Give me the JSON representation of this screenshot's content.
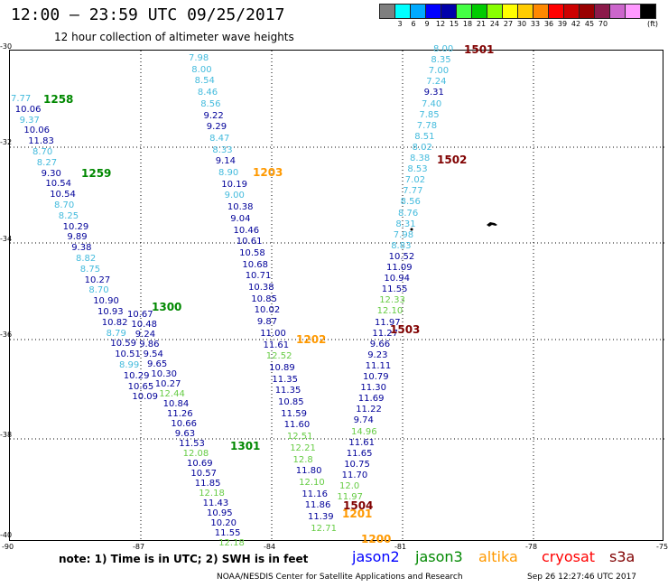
{
  "header": {
    "title": "12:00 – 23:59 UTC 09/25/2017",
    "subtitle": "12 hour collection of altimeter wave heights"
  },
  "scale": {
    "unit": "(ft)",
    "colors": [
      "#7f7f7f",
      "#00ffff",
      "#00aaff",
      "#0000ff",
      "#0000aa",
      "#44ff44",
      "#00cc00",
      "#88ff00",
      "#ffff00",
      "#ffcc00",
      "#ff8800",
      "#ff0000",
      "#cc0000",
      "#990000",
      "#8b1a4a",
      "#cc66cc",
      "#ff99ff",
      "#000000"
    ],
    "labels": [
      "3",
      "6",
      "9",
      "12",
      "15",
      "18",
      "21",
      "24",
      "27",
      "30",
      "33",
      "36",
      "39",
      "42",
      "45",
      "70"
    ]
  },
  "axes": {
    "lat": [
      "-30",
      "-32",
      "-34",
      "-36",
      "-38",
      "-40"
    ],
    "lon": [
      "-90",
      "-87",
      "-84",
      "-81",
      "-78",
      "-75"
    ]
  },
  "colors": {
    "jason2": "#0000ff",
    "jason3": "#008800",
    "altika": "#ff9900",
    "cryosat": "#ff0000",
    "s3a": "#800000"
  },
  "tracks": [
    {
      "id": "track-1258",
      "start": [
        12,
        105
      ],
      "step": [
        4.8,
        11.8
      ],
      "values": [
        {
          "v": "7.77",
          "c": "#44bbdd"
        },
        {
          "v": "10.06",
          "c": "#000099"
        },
        {
          "v": "9.37",
          "c": "#44bbdd"
        },
        {
          "v": "10.06",
          "c": "#000099"
        },
        {
          "v": "11.83",
          "c": "#000099"
        },
        {
          "v": "8.70",
          "c": "#44bbdd"
        },
        {
          "v": "8.27",
          "c": "#44bbdd"
        },
        {
          "v": "9.30",
          "c": "#000099"
        },
        {
          "v": "10.54",
          "c": "#000099"
        },
        {
          "v": "10.54",
          "c": "#000099"
        },
        {
          "v": "8.70",
          "c": "#44bbdd"
        },
        {
          "v": "8.25",
          "c": "#44bbdd"
        },
        {
          "v": "10.29",
          "c": "#000099"
        },
        {
          "v": "9.89",
          "c": "#000099"
        },
        {
          "v": "9.38",
          "c": "#000099"
        },
        {
          "v": "8.82",
          "c": "#44bbdd"
        },
        {
          "v": "8.75",
          "c": "#44bbdd"
        },
        {
          "v": "10.27",
          "c": "#000099"
        },
        {
          "v": "8.70",
          "c": "#44bbdd"
        },
        {
          "v": "10.90",
          "c": "#000099"
        },
        {
          "v": "10.93",
          "c": "#000099"
        },
        {
          "v": "10.82",
          "c": "#000099"
        },
        {
          "v": "8.79",
          "c": "#44bbdd"
        },
        {
          "v": "10.59",
          "c": "#000099"
        },
        {
          "v": "10.51",
          "c": "#000099"
        },
        {
          "v": "8.99",
          "c": "#44bbdd"
        },
        {
          "v": "10.29",
          "c": "#000099"
        },
        {
          "v": "10.65",
          "c": "#000099"
        },
        {
          "v": "10.09",
          "c": "#000099"
        }
      ]
    },
    {
      "id": "track-1300",
      "start": [
        141,
        344
      ],
      "step": [
        4.4,
        11.0
      ],
      "values": [
        {
          "v": "10.67",
          "c": "#000099"
        },
        {
          "v": "10.48",
          "c": "#000099"
        },
        {
          "v": "9.24",
          "c": "#000099"
        },
        {
          "v": "9.86",
          "c": "#000099"
        },
        {
          "v": "9.54",
          "c": "#000099"
        },
        {
          "v": "9.65",
          "c": "#000099"
        },
        {
          "v": "10.30",
          "c": "#000099"
        },
        {
          "v": "10.27",
          "c": "#000099"
        },
        {
          "v": "12.44",
          "c": "#66cc44"
        },
        {
          "v": "10.84",
          "c": "#000099"
        },
        {
          "v": "11.26",
          "c": "#000099"
        },
        {
          "v": "10.66",
          "c": "#000099"
        },
        {
          "v": "9.63",
          "c": "#000099"
        },
        {
          "v": "11.53",
          "c": "#000099"
        },
        {
          "v": "12.08",
          "c": "#66cc44"
        },
        {
          "v": "10.69",
          "c": "#000099"
        },
        {
          "v": "10.57",
          "c": "#000099"
        },
        {
          "v": "11.85",
          "c": "#000099"
        },
        {
          "v": "12.18",
          "c": "#66cc44"
        },
        {
          "v": "11.43",
          "c": "#000099"
        },
        {
          "v": "10.95",
          "c": "#000099"
        },
        {
          "v": "10.20",
          "c": "#000099"
        },
        {
          "v": "11.55",
          "c": "#000099"
        },
        {
          "v": "12.18",
          "c": "#66cc44"
        }
      ]
    },
    {
      "id": "track-1203",
      "start": [
        209,
        60
      ],
      "step": [
        3.3,
        12.7
      ],
      "values": [
        {
          "v": "7.98",
          "c": "#44bbdd"
        },
        {
          "v": "8.00",
          "c": "#44bbdd"
        },
        {
          "v": "8.54",
          "c": "#44bbdd"
        },
        {
          "v": "8.46",
          "c": "#44bbdd"
        },
        {
          "v": "8.56",
          "c": "#44bbdd"
        },
        {
          "v": "9.22",
          "c": "#000099"
        },
        {
          "v": "9.29",
          "c": "#000099"
        },
        {
          "v": "8.47",
          "c": "#44bbdd"
        },
        {
          "v": "8.33",
          "c": "#44bbdd"
        },
        {
          "v": "9.14",
          "c": "#000099"
        },
        {
          "v": "8.90",
          "c": "#44bbdd"
        },
        {
          "v": "10.19",
          "c": "#000099"
        },
        {
          "v": "9.00",
          "c": "#44bbdd"
        },
        {
          "v": "10.38",
          "c": "#000099"
        },
        {
          "v": "9.04",
          "c": "#000099"
        },
        {
          "v": "10.46",
          "c": "#000099"
        },
        {
          "v": "10.61",
          "c": "#000099"
        },
        {
          "v": "10.58",
          "c": "#000099"
        },
        {
          "v": "10.68",
          "c": "#000099"
        },
        {
          "v": "10.71",
          "c": "#000099"
        },
        {
          "v": "10.38",
          "c": "#000099"
        },
        {
          "v": "10.85",
          "c": "#000099"
        },
        {
          "v": "10.02",
          "c": "#000099"
        },
        {
          "v": "9.87",
          "c": "#000099"
        },
        {
          "v": "11.00",
          "c": "#000099"
        },
        {
          "v": "11.61",
          "c": "#000099"
        },
        {
          "v": "12.52",
          "c": "#66cc44"
        },
        {
          "v": "10.89",
          "c": "#000099"
        },
        {
          "v": "11.35",
          "c": "#000099"
        },
        {
          "v": "11.35",
          "c": "#000099"
        },
        {
          "v": "10.85",
          "c": "#000099"
        },
        {
          "v": "11.59",
          "c": "#000099"
        },
        {
          "v": "11.60",
          "c": "#000099"
        },
        {
          "v": "12.51",
          "c": "#66cc44"
        },
        {
          "v": "12.21",
          "c": "#66cc44"
        },
        {
          "v": "12.8",
          "c": "#66cc44"
        },
        {
          "v": "11.80",
          "c": "#000099"
        },
        {
          "v": "12.10",
          "c": "#66cc44"
        },
        {
          "v": "11.16",
          "c": "#000099"
        },
        {
          "v": "11.86",
          "c": "#000099"
        },
        {
          "v": "11.39",
          "c": "#000099"
        },
        {
          "v": "12.71",
          "c": "#66cc44"
        }
      ]
    },
    {
      "id": "track-1501",
      "start": [
        480,
        50
      ],
      "step": [
        -2.6,
        12.1
      ],
      "values": [
        {
          "v": "8.00",
          "c": "#44bbdd"
        },
        {
          "v": "8.35",
          "c": "#44bbdd"
        },
        {
          "v": "7.00",
          "c": "#44bbdd"
        },
        {
          "v": "7.24",
          "c": "#44bbdd"
        },
        {
          "v": "9.31",
          "c": "#000099"
        },
        {
          "v": "7.40",
          "c": "#44bbdd"
        },
        {
          "v": "7.85",
          "c": "#44bbdd"
        },
        {
          "v": "7.78",
          "c": "#44bbdd"
        },
        {
          "v": "8.51",
          "c": "#44bbdd"
        },
        {
          "v": "8.02",
          "c": "#44bbdd"
        },
        {
          "v": "8.38",
          "c": "#44bbdd"
        },
        {
          "v": "8.53",
          "c": "#44bbdd"
        },
        {
          "v": "7.02",
          "c": "#44bbdd"
        },
        {
          "v": "7.77",
          "c": "#44bbdd"
        },
        {
          "v": "8.56",
          "c": "#44bbdd"
        },
        {
          "v": "8.76",
          "c": "#44bbdd"
        },
        {
          "v": "8.31",
          "c": "#44bbdd"
        },
        {
          "v": "7.98",
          "c": "#44bbdd"
        },
        {
          "v": "8.83",
          "c": "#44bbdd"
        },
        {
          "v": "10.52",
          "c": "#000099"
        },
        {
          "v": "11.09",
          "c": "#000099"
        },
        {
          "v": "10.94",
          "c": "#000099"
        },
        {
          "v": "11.55",
          "c": "#000099"
        },
        {
          "v": "12.33",
          "c": "#66cc44"
        },
        {
          "v": "12.10",
          "c": "#66cc44"
        },
        {
          "v": "11.97",
          "c": "#000099"
        },
        {
          "v": "11.27",
          "c": "#000099"
        },
        {
          "v": "9.66",
          "c": "#000099"
        },
        {
          "v": "9.23",
          "c": "#000099"
        },
        {
          "v": "11.11",
          "c": "#000099"
        },
        {
          "v": "10.79",
          "c": "#000099"
        },
        {
          "v": "11.30",
          "c": "#000099"
        },
        {
          "v": "11.69",
          "c": "#000099"
        },
        {
          "v": "11.22",
          "c": "#000099"
        },
        {
          "v": "9.74",
          "c": "#000099"
        },
        {
          "v": "14.96",
          "c": "#66cc44"
        },
        {
          "v": "11.61",
          "c": "#000099"
        },
        {
          "v": "11.65",
          "c": "#000099"
        },
        {
          "v": "10.75",
          "c": "#000099"
        },
        {
          "v": "11.70",
          "c": "#000099"
        },
        {
          "v": "12.0",
          "c": "#66cc44"
        },
        {
          "v": "11.97",
          "c": "#66cc44"
        }
      ]
    }
  ],
  "timestamps": [
    {
      "t": "1258",
      "c": "#008800"
    },
    {
      "t": "1259",
      "c": "#008800"
    },
    {
      "t": "1300",
      "c": "#008800"
    },
    {
      "t": "1301",
      "c": "#008800"
    },
    {
      "t": "1203",
      "c": "#ff9900"
    },
    {
      "t": "1202",
      "c": "#ff9900"
    },
    {
      "t": "1201",
      "c": "#ff9900"
    },
    {
      "t": "1200",
      "c": "#ff9900"
    },
    {
      "t": "1501",
      "c": "#800000"
    },
    {
      "t": "1502",
      "c": "#800000"
    },
    {
      "t": "1503",
      "c": "#800000"
    },
    {
      "t": "1504",
      "c": "#800000"
    }
  ],
  "note": "note:  1) Time is in UTC;  2) SWH is in feet",
  "legend": {
    "jason2": "jason2",
    "jason3": "jason3",
    "altika": "altika",
    "cryosat": "cryosat",
    "s3a": "s3a"
  },
  "footer": {
    "credit": "NOAA/NESDIS Center for Satellite Applications and Research",
    "generated": "Sep 26 12:27:46 UTC 2017"
  }
}
